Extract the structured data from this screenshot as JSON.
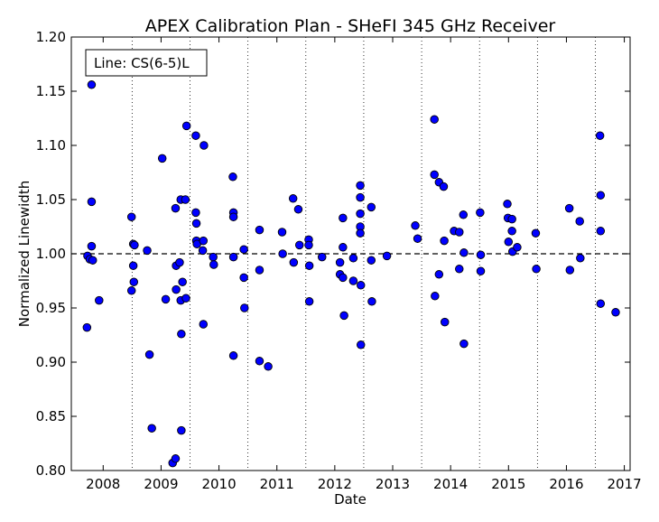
{
  "chart_data": {
    "type": "scatter",
    "title": "APEX Calibration Plan - SHeFI 345 GHz Receiver",
    "xlabel": "Date",
    "ylabel": "Normalized Linewidth",
    "xlim": [
      2007.45,
      2017.1
    ],
    "ylim": [
      0.8,
      1.2
    ],
    "x_ticks": [
      "2008",
      "2009",
      "2010",
      "2011",
      "2012",
      "2013",
      "2014",
      "2015",
      "2016",
      "2017"
    ],
    "y_ticks": [
      "0.80",
      "0.85",
      "0.90",
      "0.95",
      "1.00",
      "1.05",
      "1.10",
      "1.15",
      "1.20"
    ],
    "reference_line": 1.0,
    "season_boundaries": [
      2008.5,
      2009.5,
      2010.5,
      2011.5,
      2012.5,
      2013.5,
      2014.5,
      2015.5,
      2016.5
    ],
    "legend": {
      "text": "Line: CS(6-5)L",
      "placement": "top-left"
    },
    "marker_color": "#0000ff",
    "points": [
      [
        2007.72,
        0.932
      ],
      [
        2007.73,
        0.998
      ],
      [
        2007.77,
        0.995
      ],
      [
        2007.8,
        1.156
      ],
      [
        2007.8,
        1.048
      ],
      [
        2007.8,
        1.007
      ],
      [
        2007.82,
        0.994
      ],
      [
        2007.93,
        0.957
      ],
      [
        2008.49,
        1.034
      ],
      [
        2008.49,
        0.966
      ],
      [
        2008.52,
        1.009
      ],
      [
        2008.52,
        0.989
      ],
      [
        2008.53,
        0.974
      ],
      [
        2008.54,
        1.008
      ],
      [
        2008.76,
        1.003
      ],
      [
        2008.8,
        0.907
      ],
      [
        2008.84,
        0.839
      ],
      [
        2009.02,
        1.088
      ],
      [
        2009.08,
        0.958
      ],
      [
        2009.2,
        0.807
      ],
      [
        2009.25,
        0.811
      ],
      [
        2009.25,
        1.042
      ],
      [
        2009.26,
        0.989
      ],
      [
        2009.26,
        0.967
      ],
      [
        2009.32,
        0.992
      ],
      [
        2009.34,
        1.05
      ],
      [
        2009.34,
        0.957
      ],
      [
        2009.35,
        0.926
      ],
      [
        2009.35,
        0.837
      ],
      [
        2009.37,
        0.974
      ],
      [
        2009.42,
        1.05
      ],
      [
        2009.43,
        0.959
      ],
      [
        2009.44,
        1.118
      ],
      [
        2009.6,
        1.109
      ],
      [
        2009.6,
        1.038
      ],
      [
        2009.61,
        1.028
      ],
      [
        2009.61,
        1.012
      ],
      [
        2009.62,
        1.009
      ],
      [
        2009.72,
        1.003
      ],
      [
        2009.73,
        1.012
      ],
      [
        2009.73,
        0.935
      ],
      [
        2009.74,
        1.1
      ],
      [
        2009.9,
        0.997
      ],
      [
        2009.91,
        0.99
      ],
      [
        2010.24,
        1.071
      ],
      [
        2010.25,
        1.038
      ],
      [
        2010.25,
        1.034
      ],
      [
        2010.25,
        0.997
      ],
      [
        2010.25,
        0.906
      ],
      [
        2010.43,
        1.004
      ],
      [
        2010.43,
        0.978
      ],
      [
        2010.44,
        0.95
      ],
      [
        2010.7,
        1.022
      ],
      [
        2010.7,
        0.985
      ],
      [
        2010.7,
        0.901
      ],
      [
        2010.85,
        0.896
      ],
      [
        2011.09,
        1.02
      ],
      [
        2011.1,
        1.0
      ],
      [
        2011.28,
        1.051
      ],
      [
        2011.29,
        0.992
      ],
      [
        2011.37,
        1.041
      ],
      [
        2011.39,
        1.008
      ],
      [
        2011.55,
        1.013
      ],
      [
        2011.55,
        1.008
      ],
      [
        2011.56,
        0.989
      ],
      [
        2011.56,
        0.956
      ],
      [
        2011.78,
        0.997
      ],
      [
        2012.09,
        0.992
      ],
      [
        2012.09,
        0.981
      ],
      [
        2012.14,
        1.033
      ],
      [
        2012.14,
        1.006
      ],
      [
        2012.14,
        0.978
      ],
      [
        2012.16,
        0.943
      ],
      [
        2012.32,
        0.996
      ],
      [
        2012.32,
        0.975
      ],
      [
        2012.44,
        1.063
      ],
      [
        2012.44,
        1.052
      ],
      [
        2012.44,
        1.037
      ],
      [
        2012.44,
        1.025
      ],
      [
        2012.44,
        1.019
      ],
      [
        2012.45,
        0.971
      ],
      [
        2012.45,
        0.916
      ],
      [
        2012.63,
        1.043
      ],
      [
        2012.63,
        0.994
      ],
      [
        2012.64,
        0.956
      ],
      [
        2012.9,
        0.998
      ],
      [
        2013.39,
        1.026
      ],
      [
        2013.43,
        1.014
      ],
      [
        2013.72,
        1.124
      ],
      [
        2013.72,
        1.073
      ],
      [
        2013.73,
        0.961
      ],
      [
        2013.8,
        1.066
      ],
      [
        2013.8,
        0.981
      ],
      [
        2013.88,
        1.062
      ],
      [
        2013.89,
        1.012
      ],
      [
        2013.9,
        0.937
      ],
      [
        2014.06,
        1.021
      ],
      [
        2014.15,
        1.02
      ],
      [
        2014.15,
        0.986
      ],
      [
        2014.22,
        1.036
      ],
      [
        2014.23,
        1.001
      ],
      [
        2014.23,
        0.917
      ],
      [
        2014.51,
        1.038
      ],
      [
        2014.52,
        0.999
      ],
      [
        2014.52,
        0.984
      ],
      [
        2014.98,
        1.046
      ],
      [
        2014.99,
        1.033
      ],
      [
        2015.0,
        1.011
      ],
      [
        2015.06,
        1.032
      ],
      [
        2015.06,
        1.021
      ],
      [
        2015.07,
        1.002
      ],
      [
        2015.15,
        1.006
      ],
      [
        2015.47,
        1.019
      ],
      [
        2015.48,
        0.986
      ],
      [
        2016.05,
        1.042
      ],
      [
        2016.06,
        0.985
      ],
      [
        2016.23,
        1.03
      ],
      [
        2016.24,
        0.996
      ],
      [
        2016.58,
        1.109
      ],
      [
        2016.59,
        1.054
      ],
      [
        2016.59,
        1.021
      ],
      [
        2016.59,
        0.954
      ],
      [
        2016.85,
        0.946
      ]
    ]
  }
}
